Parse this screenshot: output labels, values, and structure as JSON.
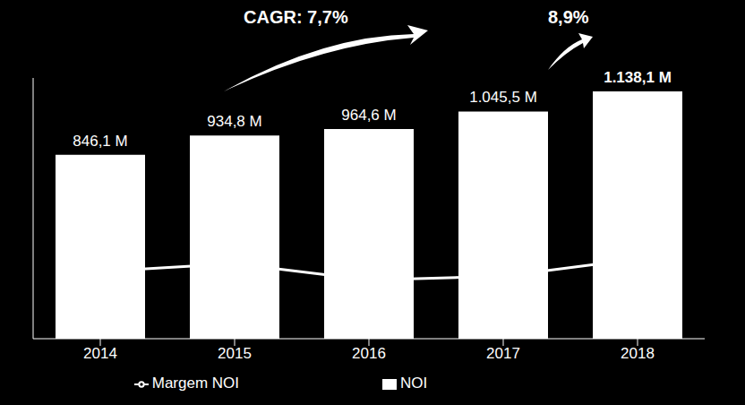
{
  "chart_data": {
    "type": "bar",
    "categories": [
      "2014",
      "2015",
      "2016",
      "2017",
      "2018"
    ],
    "series": [
      {
        "name": "NOI",
        "type": "bar",
        "color": "#ffffff",
        "values": [
          846.1,
          934.8,
          964.6,
          1045.5,
          1138.1
        ],
        "value_labels": [
          "846,1 M",
          "934,8 M",
          "964,6 M",
          "1.045,5 M",
          "1.138,1 M"
        ]
      },
      {
        "name": "Margem NOI",
        "type": "line",
        "color": "#ffffff",
        "marker": "circle",
        "axis": "y2",
        "values": [
          25.8,
          28.8,
          22.5,
          24.0,
          30.6
        ]
      }
    ],
    "ylim": [
      0,
      1200
    ],
    "yticks": [
      0,
      200,
      400,
      600,
      800,
      1000,
      1200
    ],
    "y2lim": [
      0,
      100
    ],
    "y2ticks": [
      0,
      25,
      50,
      75,
      100
    ],
    "tick_labels": "x",
    "data_labels": true,
    "legend": "bottom",
    "annotations": [
      "CAGR: 7,7%",
      "8,9%"
    ]
  }
}
